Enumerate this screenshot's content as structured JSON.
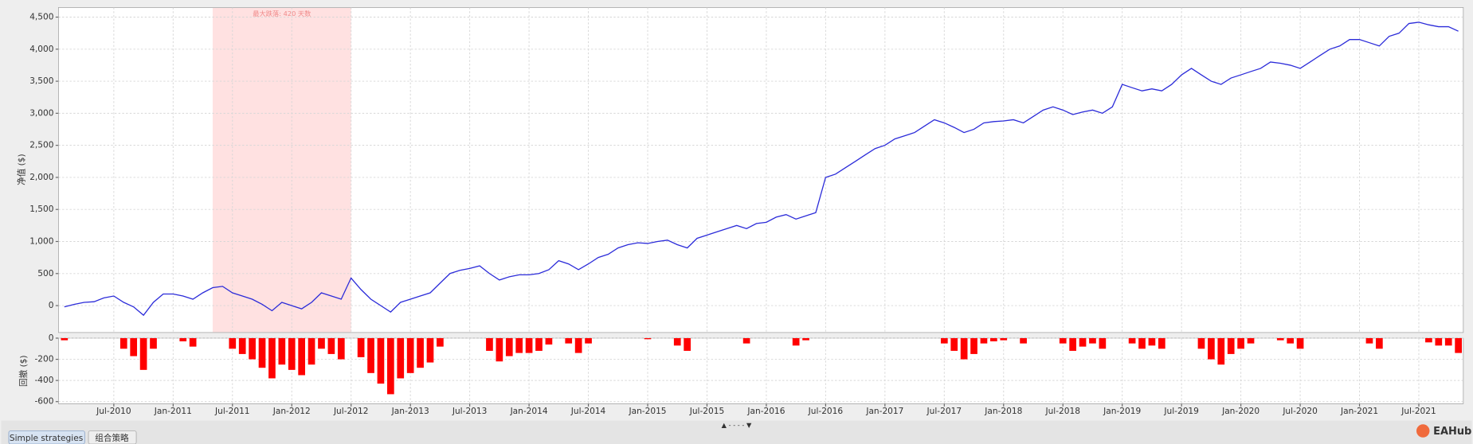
{
  "chart_data": [
    {
      "type": "line",
      "y_label": "净值 ($)",
      "color": "#2b2bd9",
      "x": [
        "Feb-2010",
        "Mar-2010",
        "Apr-2010",
        "May-2010",
        "Jun-2010",
        "Jul-2010",
        "Aug-2010",
        "Sep-2010",
        "Oct-2010",
        "Nov-2010",
        "Dec-2010",
        "Jan-2011",
        "Feb-2011",
        "Mar-2011",
        "Apr-2011",
        "May-2011",
        "Jun-2011",
        "Jul-2011",
        "Aug-2011",
        "Sep-2011",
        "Oct-2011",
        "Nov-2011",
        "Dec-2011",
        "Jan-2012",
        "Feb-2012",
        "Mar-2012",
        "Apr-2012",
        "May-2012",
        "Jun-2012",
        "Jul-2012",
        "Aug-2012",
        "Sep-2012",
        "Oct-2012",
        "Nov-2012",
        "Dec-2012",
        "Jan-2013",
        "Feb-2013",
        "Mar-2013",
        "Apr-2013",
        "May-2013",
        "Jun-2013",
        "Jul-2013",
        "Aug-2013",
        "Sep-2013",
        "Oct-2013",
        "Nov-2013",
        "Dec-2013",
        "Jan-2014",
        "Feb-2014",
        "Mar-2014",
        "Apr-2014",
        "May-2014",
        "Jun-2014",
        "Jul-2014",
        "Aug-2014",
        "Sep-2014",
        "Oct-2014",
        "Nov-2014",
        "Dec-2014",
        "Jan-2015",
        "Feb-2015",
        "Mar-2015",
        "Apr-2015",
        "May-2015",
        "Jun-2015",
        "Jul-2015",
        "Aug-2015",
        "Sep-2015",
        "Oct-2015",
        "Nov-2015",
        "Dec-2015",
        "Jan-2016",
        "Feb-2016",
        "Mar-2016",
        "Apr-2016",
        "May-2016",
        "Jun-2016",
        "Jul-2016",
        "Aug-2016",
        "Sep-2016",
        "Oct-2016",
        "Nov-2016",
        "Dec-2016",
        "Jan-2017",
        "Feb-2017",
        "Mar-2017",
        "Apr-2017",
        "May-2017",
        "Jun-2017",
        "Jul-2017",
        "Aug-2017",
        "Sep-2017",
        "Oct-2017",
        "Nov-2017",
        "Dec-2017",
        "Jan-2018",
        "Feb-2018",
        "Mar-2018",
        "Apr-2018",
        "May-2018",
        "Jun-2018",
        "Jul-2018",
        "Aug-2018",
        "Sep-2018",
        "Oct-2018",
        "Nov-2018",
        "Dec-2018",
        "Jan-2019",
        "Feb-2019",
        "Mar-2019",
        "Apr-2019",
        "May-2019",
        "Jun-2019",
        "Jul-2019",
        "Aug-2019",
        "Sep-2019",
        "Oct-2019",
        "Nov-2019",
        "Dec-2019",
        "Jan-2020",
        "Feb-2020",
        "Mar-2020",
        "Apr-2020",
        "May-2020",
        "Jun-2020",
        "Jul-2020",
        "Aug-2020",
        "Sep-2020",
        "Oct-2020",
        "Nov-2020",
        "Dec-2020",
        "Jan-2021",
        "Feb-2021",
        "Mar-2021",
        "Apr-2021",
        "May-2021",
        "Jun-2021",
        "Jul-2021",
        "Aug-2021",
        "Sep-2021",
        "Oct-2021",
        "Nov-2021"
      ],
      "values": [
        -20,
        20,
        50,
        60,
        120,
        150,
        50,
        -20,
        -150,
        50,
        180,
        180,
        150,
        100,
        200,
        280,
        300,
        200,
        150,
        100,
        20,
        -80,
        50,
        0,
        -50,
        50,
        200,
        150,
        100,
        430,
        250,
        100,
        0,
        -100,
        50,
        100,
        150,
        200,
        350,
        500,
        550,
        580,
        620,
        500,
        400,
        450,
        480,
        480,
        500,
        560,
        700,
        650,
        560,
        650,
        750,
        800,
        900,
        950,
        980,
        970,
        1000,
        1020,
        950,
        900,
        1050,
        1100,
        1150,
        1200,
        1250,
        1200,
        1280,
        1300,
        1380,
        1420,
        1350,
        1400,
        1450,
        2000,
        2050,
        2150,
        2250,
        2350,
        2450,
        2500,
        2600,
        2650,
        2700,
        2800,
        2900,
        2850,
        2780,
        2700,
        2750,
        2850,
        2870,
        2880,
        2900,
        2850,
        2950,
        3050,
        3100,
        3050,
        2980,
        3020,
        3050,
        3000,
        3100,
        3450,
        3400,
        3350,
        3380,
        3350,
        3450,
        3600,
        3700,
        3600,
        3500,
        3450,
        3550,
        3600,
        3650,
        3700,
        3800,
        3780,
        3750,
        3700,
        3800,
        3900,
        4000,
        4050,
        4150,
        4150,
        4100,
        4050,
        4200,
        4250,
        4400,
        4420,
        4380,
        4350,
        4350,
        4280
      ],
      "ylim": [
        -420,
        4650
      ],
      "yticks": [
        0,
        500,
        {
          "value": 1000,
          "label": "1,000"
        },
        {
          "value": 1500,
          "label": "1,500"
        },
        {
          "value": 2000,
          "label": "2,000"
        },
        {
          "value": 2500,
          "label": "2,500"
        },
        {
          "value": 3000,
          "label": "3,000"
        },
        {
          "value": 3500,
          "label": "3,500"
        },
        {
          "value": 4000,
          "label": "4,000"
        },
        {
          "value": 4500,
          "label": "4,500"
        }
      ],
      "grid": true,
      "highlight": {
        "from": "May-2011",
        "to": "Jul-2012",
        "label": "最大跌落: 420 天数",
        "color": "#ffe1e1"
      }
    },
    {
      "type": "bar",
      "y_label": "回撤 ($)",
      "color": "#ff0000",
      "categories": [
        "Feb-2010",
        "Mar-2010",
        "Apr-2010",
        "May-2010",
        "Jun-2010",
        "Jul-2010",
        "Aug-2010",
        "Sep-2010",
        "Oct-2010",
        "Nov-2010",
        "Dec-2010",
        "Jan-2011",
        "Feb-2011",
        "Mar-2011",
        "Apr-2011",
        "May-2011",
        "Jun-2011",
        "Jul-2011",
        "Aug-2011",
        "Sep-2011",
        "Oct-2011",
        "Nov-2011",
        "Dec-2011",
        "Jan-2012",
        "Feb-2012",
        "Mar-2012",
        "Apr-2012",
        "May-2012",
        "Jun-2012",
        "Jul-2012",
        "Aug-2012",
        "Sep-2012",
        "Oct-2012",
        "Nov-2012",
        "Dec-2012",
        "Jan-2013",
        "Feb-2013",
        "Mar-2013",
        "Apr-2013",
        "May-2013",
        "Jun-2013",
        "Jul-2013",
        "Aug-2013",
        "Sep-2013",
        "Oct-2013",
        "Nov-2013",
        "Dec-2013",
        "Jan-2014",
        "Feb-2014",
        "Mar-2014",
        "Apr-2014",
        "May-2014",
        "Jun-2014",
        "Jul-2014",
        "Aug-2014",
        "Sep-2014",
        "Oct-2014",
        "Nov-2014",
        "Dec-2014",
        "Jan-2015",
        "Feb-2015",
        "Mar-2015",
        "Apr-2015",
        "May-2015",
        "Jun-2015",
        "Jul-2015",
        "Aug-2015",
        "Sep-2015",
        "Oct-2015",
        "Nov-2015",
        "Dec-2015",
        "Jan-2016",
        "Feb-2016",
        "Mar-2016",
        "Apr-2016",
        "May-2016",
        "Jun-2016",
        "Jul-2016",
        "Aug-2016",
        "Sep-2016",
        "Oct-2016",
        "Nov-2016",
        "Dec-2016",
        "Jan-2017",
        "Feb-2017",
        "Mar-2017",
        "Apr-2017",
        "May-2017",
        "Jun-2017",
        "Jul-2017",
        "Aug-2017",
        "Sep-2017",
        "Oct-2017",
        "Nov-2017",
        "Dec-2017",
        "Jan-2018",
        "Feb-2018",
        "Mar-2018",
        "Apr-2018",
        "May-2018",
        "Jun-2018",
        "Jul-2018",
        "Aug-2018",
        "Sep-2018",
        "Oct-2018",
        "Nov-2018",
        "Dec-2018",
        "Jan-2019",
        "Feb-2019",
        "Mar-2019",
        "Apr-2019",
        "May-2019",
        "Jun-2019",
        "Jul-2019",
        "Aug-2019",
        "Sep-2019",
        "Oct-2019",
        "Nov-2019",
        "Dec-2019",
        "Jan-2020",
        "Feb-2020",
        "Mar-2020",
        "Apr-2020",
        "May-2020",
        "Jun-2020",
        "Jul-2020",
        "Aug-2020",
        "Sep-2020",
        "Oct-2020",
        "Nov-2020",
        "Dec-2020",
        "Jan-2021",
        "Feb-2021",
        "Mar-2021",
        "Apr-2021",
        "May-2021",
        "Jun-2021",
        "Jul-2021",
        "Aug-2021",
        "Sep-2021",
        "Oct-2021",
        "Nov-2021"
      ],
      "values": [
        -20,
        0,
        0,
        0,
        0,
        0,
        -100,
        -170,
        -300,
        -100,
        0,
        0,
        -30,
        -80,
        0,
        0,
        0,
        -100,
        -150,
        -200,
        -280,
        -380,
        -250,
        -300,
        -350,
        -250,
        -100,
        -150,
        -200,
        0,
        -180,
        -330,
        -430,
        -530,
        -380,
        -330,
        -280,
        -230,
        -80,
        0,
        0,
        0,
        0,
        -120,
        -220,
        -170,
        -140,
        -140,
        -120,
        -60,
        0,
        -50,
        -140,
        -50,
        0,
        0,
        0,
        0,
        0,
        -10,
        0,
        0,
        -70,
        -120,
        0,
        0,
        0,
        0,
        0,
        -50,
        0,
        0,
        0,
        0,
        -70,
        -20,
        0,
        0,
        0,
        0,
        0,
        0,
        0,
        0,
        0,
        0,
        0,
        0,
        0,
        -50,
        -120,
        -200,
        -150,
        -50,
        -30,
        -20,
        0,
        -50,
        0,
        0,
        0,
        -50,
        -120,
        -80,
        -50,
        -100,
        0,
        0,
        -50,
        -100,
        -70,
        -100,
        0,
        0,
        0,
        -100,
        -200,
        -250,
        -150,
        -100,
        -50,
        0,
        0,
        -20,
        -50,
        -100,
        0,
        0,
        0,
        0,
        0,
        0,
        -50,
        -100,
        0,
        0,
        0,
        0,
        -40,
        -70,
        -70,
        -140
      ],
      "ylim": [
        -620,
        0
      ],
      "yticks": [
        0,
        -200,
        -400,
        -600
      ],
      "xticks": [
        "Jul-2010",
        "Jan-2011",
        "Jul-2011",
        "Jan-2012",
        "Jul-2012",
        "Jan-2013",
        "Jul-2013",
        "Jan-2014",
        "Jul-2014",
        "Jan-2015",
        "Jul-2015",
        "Jan-2016",
        "Jul-2016",
        "Jan-2017",
        "Jul-2017",
        "Jan-2018",
        "Jul-2018",
        "Jan-2019",
        "Jul-2019",
        "Jan-2020",
        "Jul-2020",
        "Jan-2021",
        "Jul-2021"
      ],
      "grid": true
    }
  ],
  "tabs": [
    "Simple strategies",
    "组合策略"
  ],
  "splitter": "▲ - - - - ▼",
  "logo": "EAHub"
}
